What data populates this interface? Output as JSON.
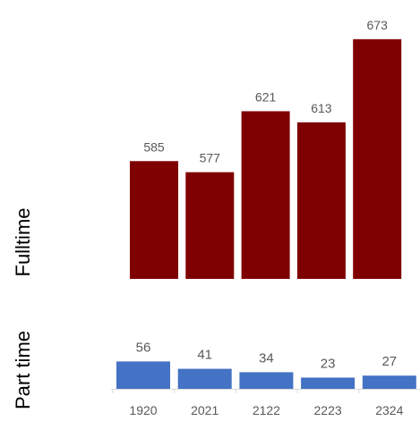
{
  "chart_data": [
    {
      "type": "bar",
      "panel_label": "Fulltime",
      "categories": [
        "1920",
        "2021",
        "2122",
        "2223",
        "2324"
      ],
      "values": [
        585,
        577,
        621,
        613,
        673
      ],
      "ylim": [
        500,
        680
      ],
      "grid": false,
      "color": "#7f0000"
    },
    {
      "type": "bar",
      "panel_label": "Part time",
      "categories": [
        "1920",
        "2021",
        "2122",
        "2223",
        "2324"
      ],
      "values": [
        56,
        41,
        34,
        23,
        27
      ],
      "ylim": [
        0,
        150
      ],
      "grid": false,
      "color": "#4472c4"
    }
  ]
}
